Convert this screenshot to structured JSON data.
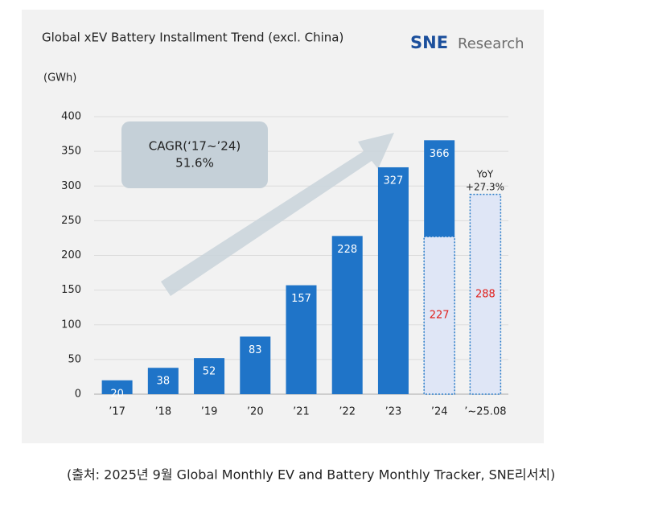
{
  "chart_data": {
    "type": "bar",
    "title": "Global xEV Battery Installment Trend (excl. China)",
    "unit": "(GWh)",
    "logo": {
      "brand": "SNE",
      "text": "Research"
    },
    "categories": [
      "’17",
      "’18",
      "’19",
      "’20",
      "’21",
      "’22",
      "’23",
      "’24",
      "’~25.08"
    ],
    "series": [
      {
        "color": "#1f74c8",
        "label_color": "#ffffff",
        "dashed": false,
        "values": [
          20,
          38,
          52,
          83,
          157,
          228,
          327,
          366,
          null
        ]
      },
      {
        "color": "#dfe6f6",
        "label_color": "#e0201c",
        "dashed": true,
        "values": [
          null,
          null,
          null,
          null,
          null,
          null,
          null,
          227,
          288
        ]
      }
    ],
    "ylim": [
      0,
      400
    ],
    "yticks": [
      0,
      50,
      100,
      150,
      200,
      250,
      300,
      350,
      400
    ],
    "grid": true,
    "annotations": [
      {
        "lines": [
          "CAGR(‘17~’24)",
          "51.6%"
        ]
      },
      {
        "lines": [
          "YoY",
          "+27.3%"
        ]
      }
    ],
    "source": "(출처: 2025년 9월 Global Monthly EV and Battery Monthly Tracker, SNE리서치)"
  }
}
